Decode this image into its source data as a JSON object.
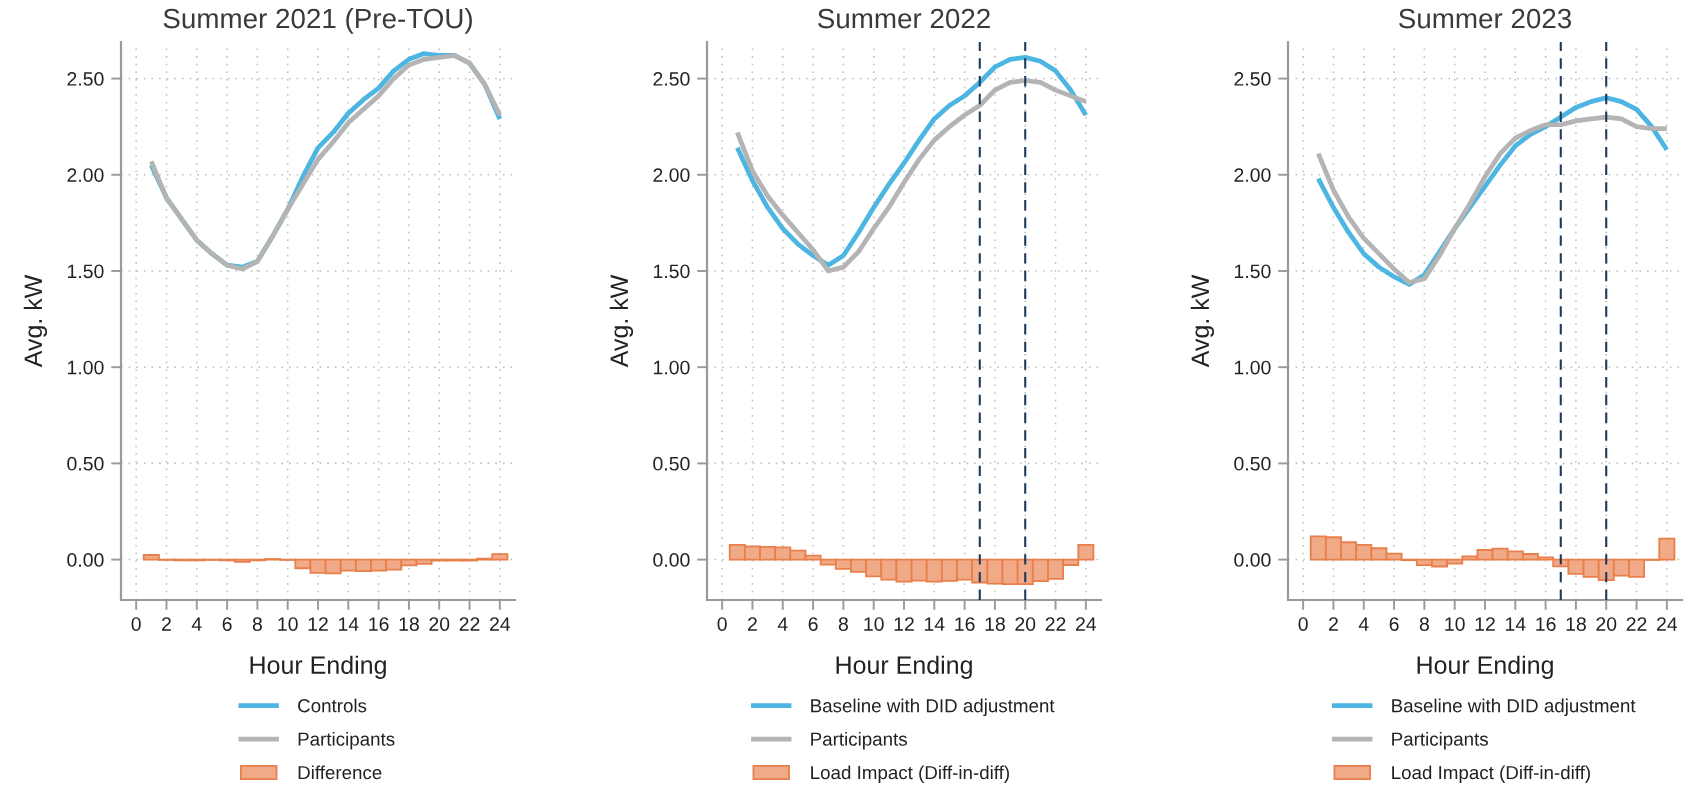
{
  "chart_data": [
    {
      "type": "line",
      "title": "Summer 2021 (Pre-TOU)",
      "xlabel": "Hour Ending",
      "ylabel": "Avg. kW",
      "x": [
        1,
        2,
        3,
        4,
        5,
        6,
        7,
        8,
        9,
        10,
        11,
        12,
        13,
        14,
        15,
        16,
        17,
        18,
        19,
        20,
        21,
        22,
        23,
        24
      ],
      "series": [
        {
          "name": "Controls",
          "color": "#4cb5e1",
          "values": [
            2.05,
            1.88,
            1.77,
            1.66,
            1.59,
            1.53,
            1.52,
            1.55,
            1.68,
            1.82,
            1.99,
            2.14,
            2.22,
            2.32,
            2.39,
            2.45,
            2.54,
            2.6,
            2.63,
            2.62,
            2.62,
            2.58,
            2.47,
            2.29
          ]
        },
        {
          "name": "Participants",
          "color": "#b4b4b4",
          "values": [
            2.07,
            1.88,
            1.77,
            1.66,
            1.59,
            1.53,
            1.51,
            1.55,
            1.68,
            1.82,
            1.95,
            2.08,
            2.17,
            2.27,
            2.34,
            2.41,
            2.5,
            2.57,
            2.6,
            2.61,
            2.62,
            2.58,
            2.47,
            2.31
          ]
        },
        {
          "name": "Difference",
          "type": "bar",
          "color": "#f0aa87",
          "values": [
            0.024,
            -0.002,
            -0.004,
            -0.004,
            -0.002,
            -0.004,
            -0.012,
            -0.004,
            0.003,
            -0.002,
            -0.045,
            -0.069,
            -0.072,
            -0.057,
            -0.06,
            -0.057,
            -0.052,
            -0.03,
            -0.022,
            -0.005,
            -0.005,
            -0.005,
            0.005,
            0.028
          ]
        }
      ],
      "xlim": [
        -1,
        25
      ],
      "ylim": [
        -0.21,
        2.69
      ],
      "xticks": [
        0,
        2,
        4,
        6,
        8,
        10,
        12,
        14,
        16,
        18,
        20,
        22,
        24
      ],
      "yticks": [
        {
          "value": 0,
          "label": "0.00"
        },
        {
          "value": 0.5,
          "label": "0.50"
        },
        {
          "value": 1,
          "label": "1.00"
        },
        {
          "value": 1.5,
          "label": "1.50"
        },
        {
          "value": 2,
          "label": "2.00"
        },
        {
          "value": 2.5,
          "label": "2.50"
        }
      ],
      "grid": true,
      "legend": "bottom"
    },
    {
      "type": "line",
      "title": "Summer 2022",
      "xlabel": "Hour Ending",
      "ylabel": "Avg. kW",
      "x": [
        1,
        2,
        3,
        4,
        5,
        6,
        7,
        8,
        9,
        10,
        11,
        12,
        13,
        14,
        15,
        16,
        17,
        18,
        19,
        20,
        21,
        22,
        23,
        24
      ],
      "series": [
        {
          "name": "Baseline with DID adjustment",
          "color": "#4cb5e1",
          "values": [
            2.14,
            1.97,
            1.83,
            1.72,
            1.64,
            1.58,
            1.53,
            1.58,
            1.7,
            1.83,
            1.95,
            2.06,
            2.18,
            2.29,
            2.36,
            2.41,
            2.48,
            2.56,
            2.6,
            2.61,
            2.59,
            2.54,
            2.44,
            2.31
          ]
        },
        {
          "name": "Participants",
          "color": "#b4b4b4",
          "values": [
            2.22,
            2.02,
            1.89,
            1.79,
            1.7,
            1.61,
            1.5,
            1.52,
            1.6,
            1.72,
            1.83,
            1.96,
            2.08,
            2.18,
            2.25,
            2.31,
            2.36,
            2.44,
            2.48,
            2.49,
            2.48,
            2.44,
            2.41,
            2.38
          ]
        },
        {
          "name": "Load Impact (Diff-in-diff)",
          "type": "bar",
          "color": "#f0aa87",
          "values": [
            0.076,
            0.069,
            0.066,
            0.064,
            0.047,
            0.021,
            -0.026,
            -0.048,
            -0.064,
            -0.087,
            -0.104,
            -0.114,
            -0.109,
            -0.114,
            -0.111,
            -0.104,
            -0.119,
            -0.125,
            -0.128,
            -0.128,
            -0.112,
            -0.1,
            -0.028,
            0.076
          ]
        }
      ],
      "xlim": [
        -1,
        25
      ],
      "ylim": [
        -0.21,
        2.69
      ],
      "xticks": [
        0,
        2,
        4,
        6,
        8,
        10,
        12,
        14,
        16,
        18,
        20,
        22,
        24
      ],
      "yticks": [
        {
          "value": 0,
          "label": "0.00"
        },
        {
          "value": 0.5,
          "label": "0.50"
        },
        {
          "value": 1,
          "label": "1.00"
        },
        {
          "value": 1.5,
          "label": "1.50"
        },
        {
          "value": 2,
          "label": "2.00"
        },
        {
          "value": 2.5,
          "label": "2.50"
        }
      ],
      "ref_lines": [
        {
          "axis": "x",
          "value": 17,
          "color": "#1b3a5c",
          "line_style": "dashed"
        },
        {
          "axis": "x",
          "value": 20,
          "color": "#1b3a5c",
          "line_style": "dashed"
        }
      ],
      "grid": true,
      "legend": "bottom"
    },
    {
      "type": "line",
      "title": "Summer 2023",
      "xlabel": "Hour Ending",
      "ylabel": "Avg. kW",
      "x": [
        1,
        2,
        3,
        4,
        5,
        6,
        7,
        8,
        9,
        10,
        11,
        12,
        13,
        14,
        15,
        16,
        17,
        18,
        19,
        20,
        21,
        22,
        23,
        24
      ],
      "series": [
        {
          "name": "Baseline with DID adjustment",
          "color": "#4cb5e1",
          "values": [
            1.98,
            1.83,
            1.7,
            1.59,
            1.52,
            1.47,
            1.43,
            1.48,
            1.6,
            1.72,
            1.83,
            1.94,
            2.05,
            2.15,
            2.21,
            2.25,
            2.3,
            2.35,
            2.38,
            2.4,
            2.38,
            2.34,
            2.25,
            2.13
          ]
        },
        {
          "name": "Participants",
          "color": "#b4b4b4",
          "values": [
            2.11,
            1.92,
            1.78,
            1.67,
            1.59,
            1.51,
            1.44,
            1.46,
            1.58,
            1.72,
            1.85,
            1.99,
            2.11,
            2.19,
            2.23,
            2.26,
            2.26,
            2.28,
            2.29,
            2.3,
            2.29,
            2.25,
            2.24,
            2.24
          ]
        },
        {
          "name": "Load Impact (Diff-in-diff)",
          "type": "bar",
          "color": "#f0aa87",
          "values": [
            0.121,
            0.116,
            0.09,
            0.076,
            0.059,
            0.031,
            -0.003,
            -0.029,
            -0.036,
            -0.021,
            0.017,
            0.05,
            0.057,
            0.043,
            0.029,
            0.012,
            -0.035,
            -0.074,
            -0.09,
            -0.107,
            -0.083,
            -0.09,
            -0.002,
            0.109
          ]
        }
      ],
      "xlim": [
        -1,
        25
      ],
      "ylim": [
        -0.21,
        2.69
      ],
      "xticks": [
        0,
        2,
        4,
        6,
        8,
        10,
        12,
        14,
        16,
        18,
        20,
        22,
        24
      ],
      "yticks": [
        {
          "value": 0,
          "label": "0.00"
        },
        {
          "value": 0.5,
          "label": "0.50"
        },
        {
          "value": 1,
          "label": "1.00"
        },
        {
          "value": 1.5,
          "label": "1.50"
        },
        {
          "value": 2,
          "label": "2.00"
        },
        {
          "value": 2.5,
          "label": "2.50"
        }
      ],
      "ref_lines": [
        {
          "axis": "x",
          "value": 17,
          "color": "#1b3a5c",
          "line_style": "dashed"
        },
        {
          "axis": "x",
          "value": 20,
          "color": "#1b3a5c",
          "line_style": "dashed"
        }
      ],
      "grid": true,
      "legend": "bottom"
    }
  ]
}
